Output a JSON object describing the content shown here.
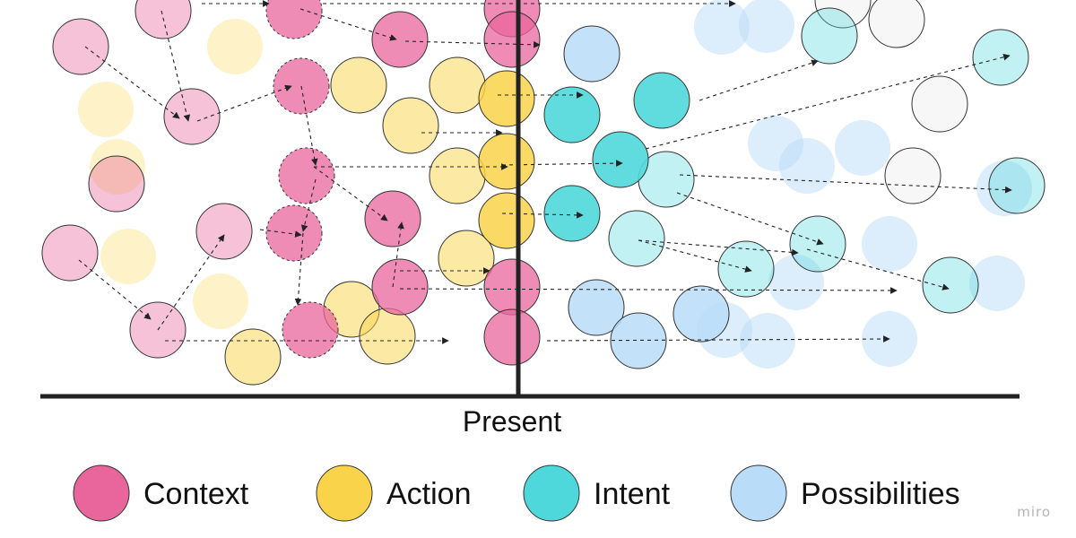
{
  "present_label": "Present",
  "watermark": "miro",
  "categories": {
    "context": {
      "label": "Context",
      "color": "#e9669c"
    },
    "action": {
      "label": "Action",
      "color": "#f9d34a"
    },
    "intent": {
      "label": "Intent",
      "color": "#4fd8dc"
    },
    "possibilities": {
      "label": "Possibilities",
      "color": "#b9dcf8"
    },
    "unknown": {
      "label": "",
      "color": "#f7f7f7"
    }
  },
  "legend": [
    {
      "category": "context",
      "label": "Context",
      "icon": "context-circle-icon"
    },
    {
      "category": "action",
      "label": "Action",
      "icon": "action-circle-icon"
    },
    {
      "category": "intent",
      "label": "Intent",
      "icon": "intent-circle-icon"
    },
    {
      "category": "possibilities",
      "label": "Possibilities",
      "icon": "possibilities-circle-icon"
    }
  ]
}
